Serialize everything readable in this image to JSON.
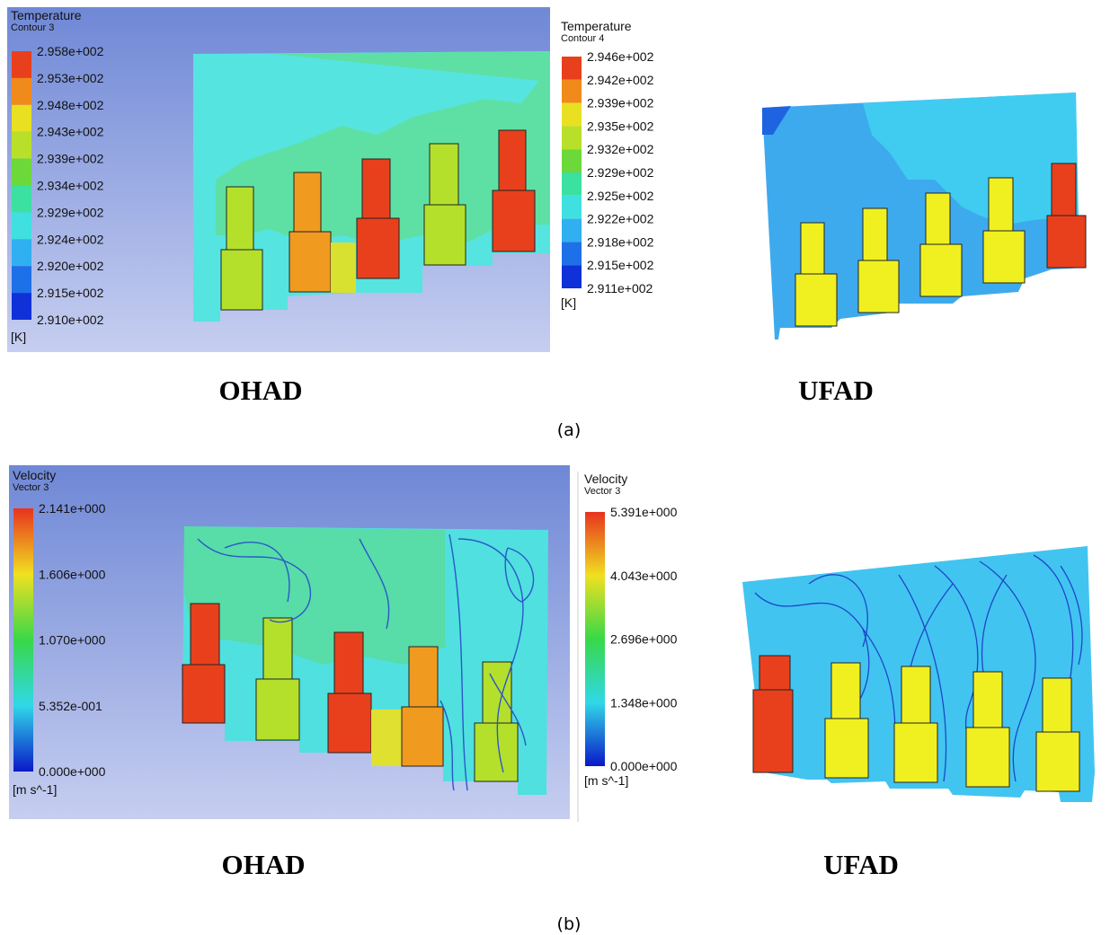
{
  "panels": [
    {
      "label": "(a)",
      "views": [
        {
          "caption": "OHAD",
          "legend": {
            "title": "Temperature",
            "subtitle": "Contour 3",
            "unit": "[K]",
            "labels": [
              "2.958e+002",
              "2.953e+002",
              "2.948e+002",
              "2.943e+002",
              "2.939e+002",
              "2.934e+002",
              "2.929e+002",
              "2.924e+002",
              "2.920e+002",
              "2.915e+002",
              "2.910e+002"
            ]
          }
        },
        {
          "caption": "UFAD",
          "legend": {
            "title": "Temperature",
            "subtitle": "Contour 4",
            "unit": "[K]",
            "labels": [
              "2.946e+002",
              "2.942e+002",
              "2.939e+002",
              "2.935e+002",
              "2.932e+002",
              "2.929e+002",
              "2.925e+002",
              "2.922e+002",
              "2.918e+002",
              "2.915e+002",
              "2.911e+002"
            ]
          }
        }
      ]
    },
    {
      "label": "(b)",
      "views": [
        {
          "caption": "OHAD",
          "legend": {
            "title": "Velocity",
            "subtitle": "Vector 3",
            "unit": "[m s^-1]",
            "labels": [
              "2.141e+000",
              "1.606e+000",
              "1.070e+000",
              "5.352e-001",
              "0.000e+000"
            ]
          }
        },
        {
          "caption": "UFAD",
          "legend": {
            "title": "Velocity",
            "subtitle": "Vector 3",
            "unit": "[m s^-1]",
            "labels": [
              "5.391e+000",
              "4.043e+000",
              "2.696e+000",
              "1.348e+000",
              "0.000e+000"
            ]
          }
        }
      ]
    }
  ]
}
